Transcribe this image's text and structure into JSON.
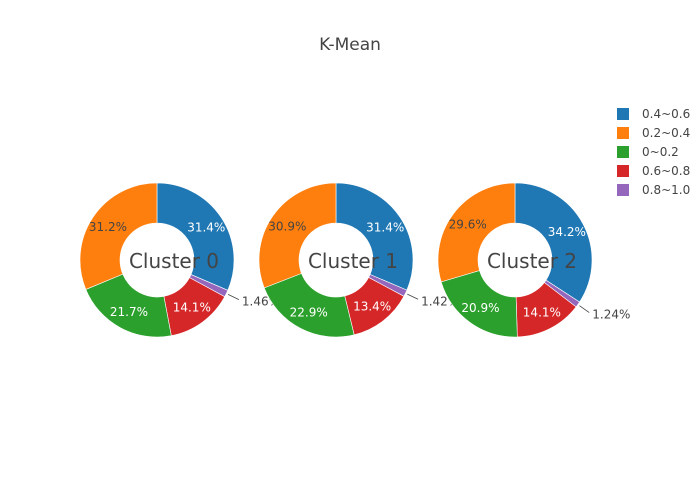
{
  "chart_data": {
    "type": "pie",
    "title": "K-Mean",
    "hole": true,
    "legend_placement": "top-right",
    "legend": [
      {
        "label": "0.4~0.6",
        "color": "#1f77b4"
      },
      {
        "label": "0.2~0.4",
        "color": "#ff7f0e"
      },
      {
        "label": "0~0.2",
        "color": "#2ca02c"
      },
      {
        "label": "0.6~0.8",
        "color": "#d62728"
      },
      {
        "label": "0.8~1.0",
        "color": "#9467bd"
      }
    ],
    "charts": [
      {
        "name": "Cluster 0",
        "slices": [
          {
            "label": "0.4~0.6",
            "value": 31.4,
            "text": "31.4%"
          },
          {
            "label": "0.8~1.0",
            "value": 1.46,
            "text": "1.46%"
          },
          {
            "label": "0.6~0.8",
            "value": 14.1,
            "text": "14.1%"
          },
          {
            "label": "0~0.2",
            "value": 21.7,
            "text": "21.7%"
          },
          {
            "label": "0.2~0.4",
            "value": 31.2,
            "text": "31.2%"
          }
        ]
      },
      {
        "name": "Cluster 1",
        "slices": [
          {
            "label": "0.4~0.6",
            "value": 31.4,
            "text": "31.4%"
          },
          {
            "label": "0.8~1.0",
            "value": 1.42,
            "text": "1.42%"
          },
          {
            "label": "0.6~0.8",
            "value": 13.4,
            "text": "13.4%"
          },
          {
            "label": "0~0.2",
            "value": 22.9,
            "text": "22.9%"
          },
          {
            "label": "0.2~0.4",
            "value": 30.9,
            "text": "30.9%"
          }
        ]
      },
      {
        "name": "Cluster 2",
        "slices": [
          {
            "label": "0.4~0.6",
            "value": 34.2,
            "text": "34.2%"
          },
          {
            "label": "0.8~1.0",
            "value": 1.24,
            "text": "1.24%"
          },
          {
            "label": "0.6~0.8",
            "value": 14.1,
            "text": "14.1%"
          },
          {
            "label": "0~0.2",
            "value": 20.9,
            "text": "20.9%"
          },
          {
            "label": "0.2~0.4",
            "value": 29.6,
            "text": "29.6%"
          }
        ]
      }
    ]
  }
}
